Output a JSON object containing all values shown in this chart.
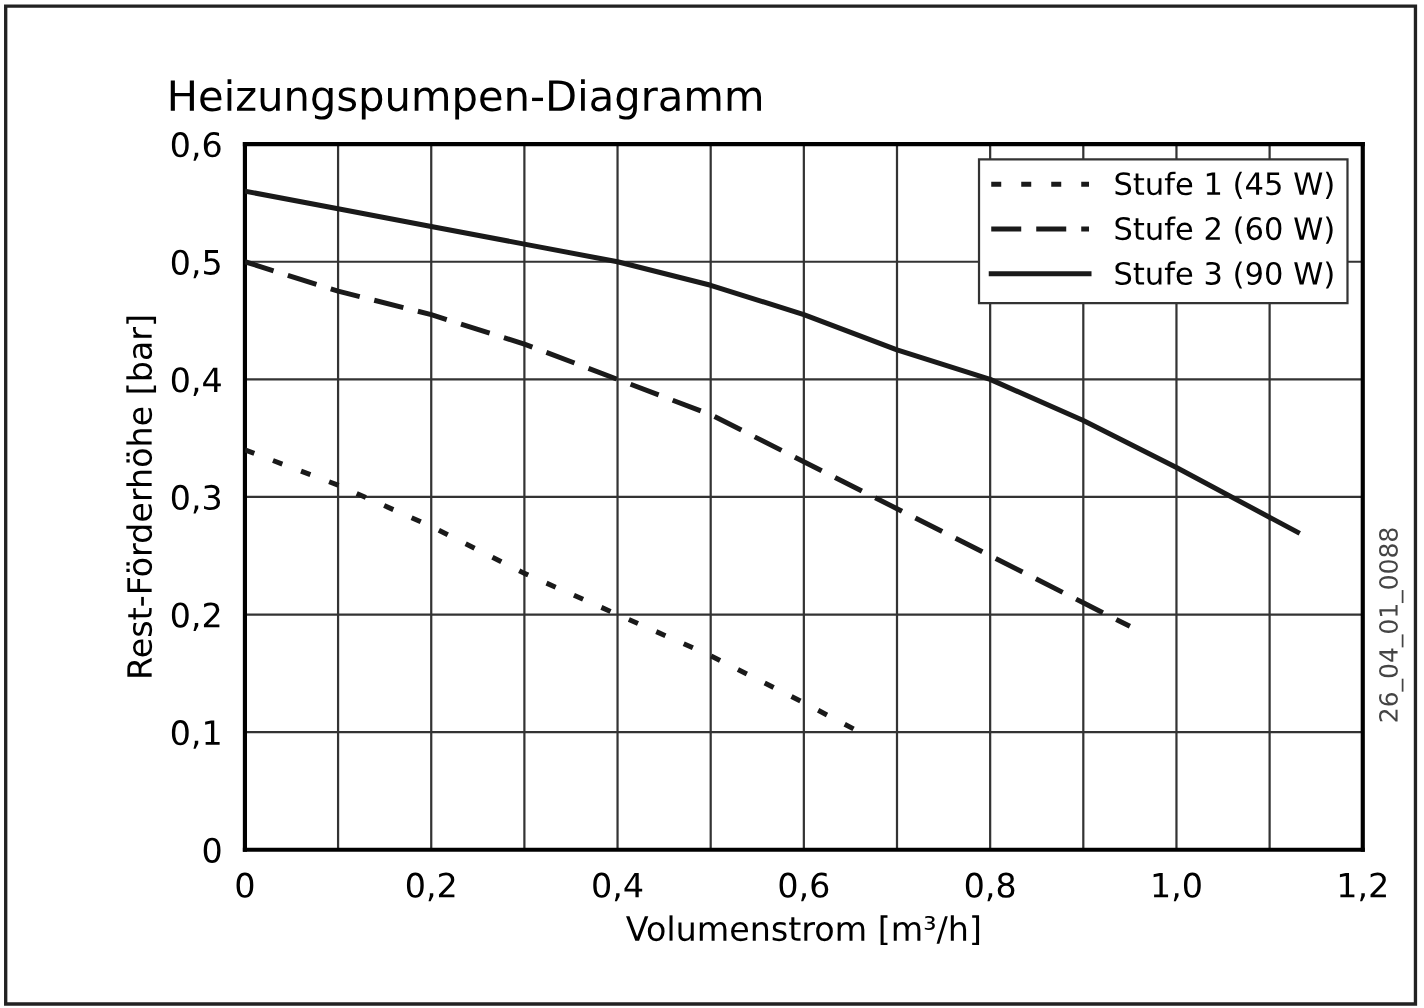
{
  "chart_data": {
    "type": "line",
    "title": "Heizungspumpen-Diagramm",
    "xlabel": "Volumenstrom [m³/h]",
    "ylabel": "Rest-Förderhöhe [bar]",
    "annotations": [
      "26_04_01_0088"
    ],
    "xlim": [
      0,
      1.2
    ],
    "ylim": [
      0,
      0.6
    ],
    "xticks": [
      0,
      {
        "value": 0.1,
        "label": null
      },
      {
        "value": 0.2,
        "label": "0,2"
      },
      {
        "value": 0.3,
        "label": null
      },
      {
        "value": 0.4,
        "label": "0,4"
      },
      {
        "value": 0.5,
        "label": null
      },
      {
        "value": 0.6,
        "label": "0,6"
      },
      {
        "value": 0.7,
        "label": null
      },
      {
        "value": 0.8,
        "label": "0,8"
      },
      {
        "value": 0.9,
        "label": null
      },
      {
        "value": 1.0,
        "label": "1,0"
      },
      {
        "value": 1.1,
        "label": null
      },
      {
        "value": 1.2,
        "label": "1,2"
      }
    ],
    "yticks": [
      0,
      {
        "value": 0.1,
        "label": "0,1"
      },
      {
        "value": 0.2,
        "label": "0,2"
      },
      {
        "value": 0.3,
        "label": "0,3"
      },
      {
        "value": 0.4,
        "label": "0,4"
      },
      {
        "value": 0.5,
        "label": "0,5"
      },
      {
        "value": 0.6,
        "label": "0,6"
      }
    ],
    "grid": true,
    "legend": "top right",
    "marker": "none",
    "series": [
      {
        "name": "Stufe 1 (45 W)",
        "color": "#1a1a1a",
        "line_style": "dotted",
        "x": [
          0,
          0.1,
          0.2,
          0.3,
          0.4,
          0.5,
          0.6,
          0.66
        ],
        "values": [
          0.34,
          0.31,
          0.275,
          0.235,
          0.2,
          0.165,
          0.125,
          0.1
        ]
      },
      {
        "name": "Stufe 2 (60 W)",
        "color": "#1a1a1a",
        "line_style": "dashed",
        "x": [
          0,
          0.1,
          0.2,
          0.3,
          0.4,
          0.5,
          0.6,
          0.7,
          0.8,
          0.9,
          0.95
        ],
        "values": [
          0.5,
          0.475,
          0.455,
          0.43,
          0.4,
          0.37,
          0.33,
          0.29,
          0.25,
          0.21,
          0.19
        ]
      },
      {
        "name": "Stufe 3 (90 W)",
        "color": "#1a1a1a",
        "line_style": "solid",
        "x": [
          0,
          0.1,
          0.2,
          0.3,
          0.4,
          0.5,
          0.6,
          0.7,
          0.8,
          0.9,
          1.0,
          1.13
        ],
        "values": [
          0.56,
          0.545,
          0.53,
          0.515,
          0.5,
          0.48,
          0.455,
          0.425,
          0.4,
          0.365,
          0.325,
          0.27
        ]
      }
    ]
  }
}
